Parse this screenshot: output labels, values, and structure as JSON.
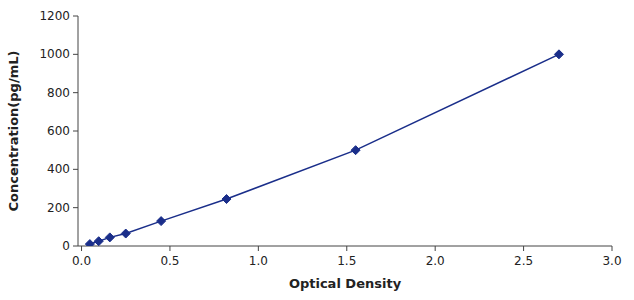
{
  "chart_data": {
    "type": "line",
    "x": [
      0.047,
      0.097,
      0.16,
      0.25,
      0.45,
      0.82,
      1.55,
      2.7
    ],
    "values": [
      10,
      25,
      45,
      65,
      130,
      245,
      500,
      1000
    ],
    "color": "#1a2e8a",
    "marker": "diamond",
    "line_style": "solid",
    "xlabel": "Optical Density",
    "ylabel": "Concentration(pg/mL)",
    "xlim": [
      -0.02,
      3.0
    ],
    "ylim": [
      0,
      1200
    ],
    "xticks": [
      {
        "value": 0,
        "label": "0.0"
      },
      0.5,
      {
        "value": 1,
        "label": "1.0"
      },
      1.5,
      {
        "value": 2,
        "label": "2.0"
      },
      2.5,
      {
        "value": 3,
        "label": "3.0"
      }
    ],
    "yticks": [
      0,
      200,
      400,
      600,
      800,
      1000,
      1200
    ],
    "grid": false
  }
}
